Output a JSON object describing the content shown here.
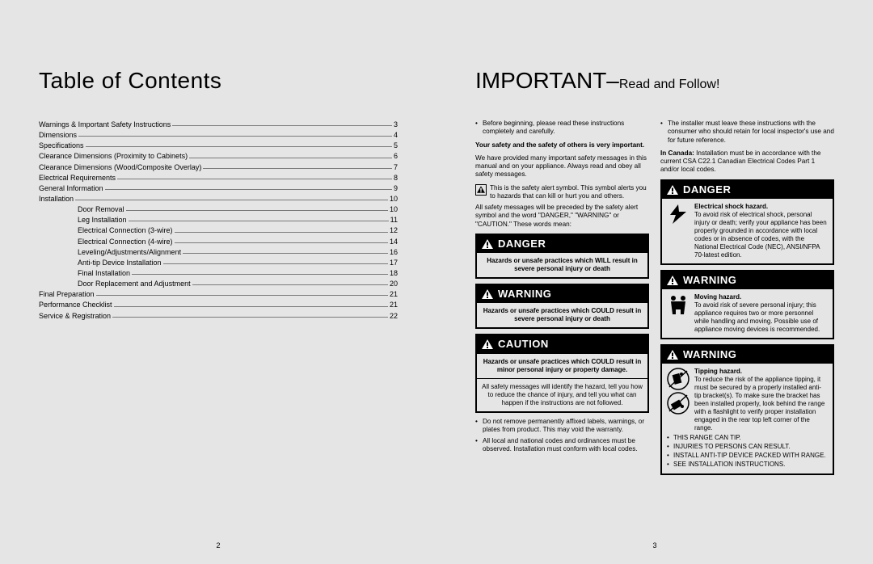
{
  "left": {
    "title": "Table of Contents",
    "page_number": "2",
    "toc": [
      {
        "label": "Warnings & Important Safety Instructions",
        "page": "3",
        "indent": 0
      },
      {
        "label": "Dimensions",
        "page": "4",
        "indent": 0
      },
      {
        "label": "Specifications",
        "page": "5",
        "indent": 0
      },
      {
        "label": "Clearance Dimensions (Proximity to Cabinets)",
        "page": "6",
        "indent": 0
      },
      {
        "label": "Clearance Dimensions (Wood/Composite Overlay)",
        "page": "7",
        "indent": 0
      },
      {
        "label": "Electrical Requirements",
        "page": "8",
        "indent": 0
      },
      {
        "label": "General Information",
        "page": "9",
        "indent": 0
      },
      {
        "label": "Installation",
        "page": "10",
        "indent": 0
      },
      {
        "label": "Door Removal",
        "page": "10",
        "indent": 1
      },
      {
        "label": "Leg Installation",
        "page": "11",
        "indent": 1
      },
      {
        "label": "Electrical Connection (3-wire)",
        "page": "12",
        "indent": 1
      },
      {
        "label": "Electrical Connection (4-wire)",
        "page": "14",
        "indent": 1
      },
      {
        "label": "Leveling/Adjustments/Alignment",
        "page": "16",
        "indent": 1
      },
      {
        "label": "Anti-tip Device Installation",
        "page": "17",
        "indent": 1
      },
      {
        "label": "Final Installation",
        "page": "18",
        "indent": 1
      },
      {
        "label": "Door Replacement and Adjustment",
        "page": "20",
        "indent": 1
      },
      {
        "label": "Final Preparation",
        "page": "21",
        "indent": 0
      },
      {
        "label": "Performance Checklist",
        "page": "21",
        "indent": 0
      },
      {
        "label": "Service & Registration",
        "page": "22",
        "indent": 0
      }
    ]
  },
  "right": {
    "title_main": "IMPORTANT–",
    "title_sub": "Read and Follow!",
    "page_number": "3",
    "col1": {
      "intro_bullet": "Before beginning, please read these instructions completely and carefully.",
      "safety_line": "Your safety and the safety of others is very important.",
      "safety_para": "We have provided many important safety messages in this manual and on your appliance. Always read and obey all safety messages.",
      "alert_symbol_text": "This is the safety alert symbol. This symbol alerts you to hazards that can kill or hurt you and others.",
      "precede_text": "All safety messages will be preceded by the safety alert symbol and the word \"DANGER,\" \"WARNING\" or \"CAUTION.\" These words mean:",
      "danger": {
        "word": "DANGER",
        "body_bold": "Hazards or unsafe practices which WILL result in severe personal injury or death"
      },
      "warning": {
        "word": "WARNING",
        "body_bold": "Hazards or unsafe practices which COULD result in severe personal injury or death"
      },
      "caution": {
        "word": "CAUTION",
        "body_bold": "Hazards or unsafe practices which COULD result in minor personal injury or property damage."
      },
      "identify_para": "All safety messages will identify the hazard, tell you how to reduce the chance of injury, and tell you what can happen if the instructions are not followed.",
      "trailing_bullets": [
        "Do not remove permanently affixed labels, warnings, or plates from product. This may void the warranty.",
        "All local and national codes and ordinances must be observed. Installation must conform with local codes."
      ]
    },
    "col2": {
      "top_bullet": "The installer must leave these instructions with the consumer who should retain for local inspector's use and for future reference.",
      "canada_label": "In Canada:",
      "canada_text": "Installation must be in accordance with the current CSA C22.1 Canadian Electrical Codes Part 1 and/or local codes.",
      "danger_elec": {
        "word": "DANGER",
        "headline": "Electrical shock hazard.",
        "body": "To avoid risk of electrical shock, personal injury or death; verify your appliance has been properly grounded in accordance with local codes or in absence of codes, with the National Electrical Code (NEC), ANSI/NFPA 70-latest edition."
      },
      "warning_move": {
        "word": "WARNING",
        "headline": "Moving hazard.",
        "body": "To avoid risk of severe personal injury; this appliance requires two or more personnel while handling and moving. Possible use of appliance moving devices is recommended."
      },
      "warning_tip": {
        "word": "WARNING",
        "headline": "Tipping hazard.",
        "body": "To reduce the risk of the appliance tipping, it must be secured by a properly installed anti-tip bracket(s). To make sure the bracket has been installed properly, look behind the range with a flashlight to verify proper installation engaged in the rear top left corner of the range.",
        "caps": [
          "THIS RANGE CAN TIP.",
          "INJURIES TO PERSONS CAN RESULT.",
          "INSTALL ANTI-TIP DEVICE PACKED WITH RANGE.",
          "SEE INSTALLATION INSTRUCTIONS."
        ]
      }
    }
  },
  "colors": {
    "page_bg": "#e5e5e5",
    "text": "#000000",
    "rule": "#7a7a7a"
  }
}
